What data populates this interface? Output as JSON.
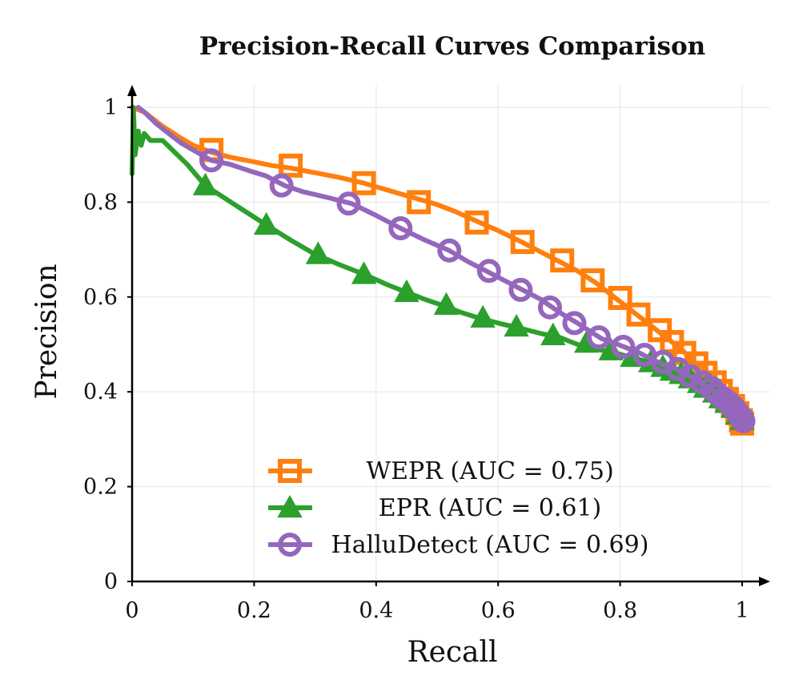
{
  "chart_data": {
    "type": "line",
    "title": "Precision-Recall Curves Comparison",
    "xlabel": "Recall",
    "ylabel": "Precision",
    "xlim": [
      0,
      1.05
    ],
    "ylim": [
      0,
      1.03
    ],
    "xticks": [
      0,
      0.2,
      0.4,
      0.6,
      0.8,
      1
    ],
    "yticks": [
      0,
      0.2,
      0.4,
      0.6,
      0.8,
      1
    ],
    "xtick_labels": [
      "0",
      "0.2",
      "0.4",
      "0.6",
      "0.8",
      "1"
    ],
    "ytick_labels": [
      "0",
      "0.2",
      "0.4",
      "0.6",
      "0.8",
      "1"
    ],
    "grid": true,
    "legend_position": "bottom-center",
    "series": [
      {
        "name": "WEPR (AUC = 0.75)",
        "color": "#ff7f0e",
        "marker": "square",
        "line": [
          [
            0,
            1.0
          ],
          [
            0.02,
            0.99
          ],
          [
            0.05,
            0.96
          ],
          [
            0.08,
            0.935
          ],
          [
            0.1,
            0.92
          ],
          [
            0.13,
            0.905
          ],
          [
            0.16,
            0.895
          ],
          [
            0.2,
            0.885
          ],
          [
            0.23,
            0.877
          ],
          [
            0.26,
            0.872
          ],
          [
            0.3,
            0.862
          ],
          [
            0.34,
            0.852
          ],
          [
            0.38,
            0.84
          ],
          [
            0.42,
            0.825
          ],
          [
            0.46,
            0.81
          ],
          [
            0.5,
            0.795
          ],
          [
            0.53,
            0.78
          ],
          [
            0.57,
            0.757
          ],
          [
            0.6,
            0.74
          ],
          [
            0.64,
            0.715
          ],
          [
            0.67,
            0.695
          ],
          [
            0.7,
            0.675
          ],
          [
            0.73,
            0.655
          ],
          [
            0.76,
            0.63
          ],
          [
            0.79,
            0.6
          ],
          [
            0.81,
            0.58
          ],
          [
            0.83,
            0.56
          ],
          [
            0.86,
            0.53
          ],
          [
            0.88,
            0.51
          ],
          [
            0.9,
            0.49
          ],
          [
            0.92,
            0.465
          ],
          [
            0.94,
            0.445
          ],
          [
            0.95,
            0.43
          ],
          [
            0.96,
            0.41
          ],
          [
            0.97,
            0.395
          ],
          [
            0.98,
            0.38
          ],
          [
            0.99,
            0.365
          ],
          [
            1.0,
            0.35
          ],
          [
            1.0,
            0.335
          ]
        ],
        "markers": [
          [
            0.13,
            0.91
          ],
          [
            0.26,
            0.877
          ],
          [
            0.38,
            0.84
          ],
          [
            0.47,
            0.8
          ],
          [
            0.565,
            0.757
          ],
          [
            0.64,
            0.716
          ],
          [
            0.705,
            0.677
          ],
          [
            0.755,
            0.635
          ],
          [
            0.8,
            0.598
          ],
          [
            0.83,
            0.563
          ],
          [
            0.865,
            0.53
          ],
          [
            0.885,
            0.505
          ],
          [
            0.905,
            0.482
          ],
          [
            0.925,
            0.46
          ],
          [
            0.94,
            0.44
          ],
          [
            0.955,
            0.42
          ],
          [
            0.965,
            0.402
          ],
          [
            0.975,
            0.385
          ],
          [
            0.985,
            0.37
          ],
          [
            0.992,
            0.355
          ],
          [
            0.998,
            0.34
          ],
          [
            1.0,
            0.333
          ]
        ]
      },
      {
        "name": "EPR (AUC = 0.61)",
        "color": "#2ca02c",
        "marker": "triangle",
        "line": [
          [
            0,
            0.86
          ],
          [
            0.002,
            1.0
          ],
          [
            0.005,
            0.9
          ],
          [
            0.01,
            0.95
          ],
          [
            0.015,
            0.92
          ],
          [
            0.02,
            0.945
          ],
          [
            0.03,
            0.93
          ],
          [
            0.05,
            0.93
          ],
          [
            0.07,
            0.905
          ],
          [
            0.09,
            0.88
          ],
          [
            0.12,
            0.835
          ],
          [
            0.15,
            0.81
          ],
          [
            0.18,
            0.785
          ],
          [
            0.22,
            0.752
          ],
          [
            0.26,
            0.72
          ],
          [
            0.3,
            0.69
          ],
          [
            0.34,
            0.668
          ],
          [
            0.38,
            0.648
          ],
          [
            0.42,
            0.625
          ],
          [
            0.45,
            0.61
          ],
          [
            0.48,
            0.595
          ],
          [
            0.51,
            0.582
          ],
          [
            0.54,
            0.567
          ],
          [
            0.57,
            0.555
          ],
          [
            0.6,
            0.545
          ],
          [
            0.64,
            0.533
          ],
          [
            0.67,
            0.523
          ],
          [
            0.7,
            0.515
          ],
          [
            0.73,
            0.5
          ],
          [
            0.76,
            0.49
          ],
          [
            0.79,
            0.483
          ],
          [
            0.82,
            0.472
          ],
          [
            0.85,
            0.462
          ],
          [
            0.87,
            0.453
          ],
          [
            0.89,
            0.443
          ],
          [
            0.91,
            0.433
          ],
          [
            0.93,
            0.415
          ],
          [
            0.95,
            0.4
          ],
          [
            0.96,
            0.385
          ],
          [
            0.97,
            0.375
          ],
          [
            0.98,
            0.365
          ],
          [
            0.99,
            0.35
          ],
          [
            1.0,
            0.345
          ],
          [
            1.0,
            0.335
          ]
        ],
        "markers": [
          [
            0.12,
            0.835
          ],
          [
            0.22,
            0.752
          ],
          [
            0.305,
            0.69
          ],
          [
            0.38,
            0.648
          ],
          [
            0.45,
            0.61
          ],
          [
            0.515,
            0.583
          ],
          [
            0.575,
            0.556
          ],
          [
            0.63,
            0.537
          ],
          [
            0.69,
            0.519
          ],
          [
            0.745,
            0.503
          ],
          [
            0.785,
            0.487
          ],
          [
            0.82,
            0.473
          ],
          [
            0.85,
            0.462
          ],
          [
            0.87,
            0.452
          ],
          [
            0.885,
            0.444
          ],
          [
            0.9,
            0.437
          ],
          [
            0.915,
            0.428
          ],
          [
            0.93,
            0.418
          ],
          [
            0.94,
            0.408
          ],
          [
            0.955,
            0.398
          ],
          [
            0.965,
            0.386
          ],
          [
            0.975,
            0.376
          ],
          [
            0.985,
            0.366
          ],
          [
            0.993,
            0.352
          ],
          [
            1.0,
            0.34
          ]
        ]
      },
      {
        "name": "HalluDetect (AUC = 0.69)",
        "color": "#9467bd",
        "marker": "circle",
        "line": [
          [
            0.01,
            1.0
          ],
          [
            0.02,
            0.99
          ],
          [
            0.04,
            0.965
          ],
          [
            0.06,
            0.945
          ],
          [
            0.08,
            0.925
          ],
          [
            0.1,
            0.91
          ],
          [
            0.13,
            0.888
          ],
          [
            0.16,
            0.88
          ],
          [
            0.19,
            0.867
          ],
          [
            0.22,
            0.855
          ],
          [
            0.25,
            0.835
          ],
          [
            0.28,
            0.822
          ],
          [
            0.32,
            0.81
          ],
          [
            0.36,
            0.797
          ],
          [
            0.4,
            0.772
          ],
          [
            0.44,
            0.745
          ],
          [
            0.48,
            0.72
          ],
          [
            0.52,
            0.698
          ],
          [
            0.55,
            0.675
          ],
          [
            0.58,
            0.655
          ],
          [
            0.61,
            0.635
          ],
          [
            0.64,
            0.615
          ],
          [
            0.67,
            0.595
          ],
          [
            0.69,
            0.577
          ],
          [
            0.71,
            0.56
          ],
          [
            0.73,
            0.545
          ],
          [
            0.75,
            0.528
          ],
          [
            0.77,
            0.512
          ],
          [
            0.79,
            0.503
          ],
          [
            0.81,
            0.493
          ],
          [
            0.83,
            0.483
          ],
          [
            0.85,
            0.47
          ],
          [
            0.87,
            0.458
          ],
          [
            0.89,
            0.45
          ],
          [
            0.91,
            0.435
          ],
          [
            0.93,
            0.42
          ],
          [
            0.95,
            0.405
          ],
          [
            0.97,
            0.385
          ],
          [
            0.98,
            0.37
          ],
          [
            0.99,
            0.355
          ],
          [
            1.0,
            0.345
          ],
          [
            1.0,
            0.34
          ]
        ],
        "markers": [
          [
            0.13,
            0.888
          ],
          [
            0.245,
            0.835
          ],
          [
            0.355,
            0.797
          ],
          [
            0.44,
            0.745
          ],
          [
            0.52,
            0.698
          ],
          [
            0.585,
            0.655
          ],
          [
            0.637,
            0.615
          ],
          [
            0.685,
            0.578
          ],
          [
            0.725,
            0.545
          ],
          [
            0.765,
            0.515
          ],
          [
            0.805,
            0.495
          ],
          [
            0.84,
            0.478
          ],
          [
            0.87,
            0.463
          ],
          [
            0.895,
            0.448
          ],
          [
            0.915,
            0.433
          ],
          [
            0.935,
            0.42
          ],
          [
            0.95,
            0.408
          ],
          [
            0.96,
            0.395
          ],
          [
            0.97,
            0.385
          ],
          [
            0.978,
            0.377
          ],
          [
            0.985,
            0.368
          ],
          [
            0.99,
            0.36
          ],
          [
            0.995,
            0.352
          ],
          [
            1.0,
            0.344
          ],
          [
            1.002,
            0.338
          ]
        ]
      }
    ]
  }
}
